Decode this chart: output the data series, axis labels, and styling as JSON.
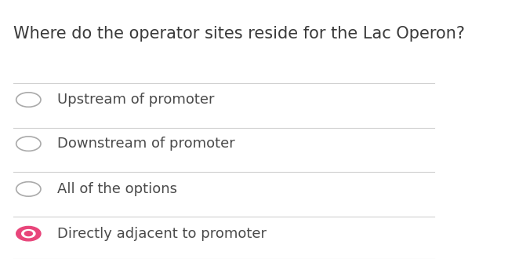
{
  "title": "Where do the operator sites reside for the Lac Operon?",
  "options": [
    "Upstream of promoter",
    "Downstream of promoter",
    "All of the options",
    "Directly adjacent to promoter"
  ],
  "selected_index": 3,
  "bg_color": "#ffffff",
  "title_color": "#3a3a3a",
  "option_text_color": "#4a4a4a",
  "divider_color": "#d0d0d0",
  "unselected_circle_color": "#aaaaaa",
  "selected_fill_color": "#e8457a",
  "selected_border_color": "#e8457a",
  "title_fontsize": 15,
  "option_fontsize": 13,
  "fig_width": 6.48,
  "fig_height": 3.3,
  "dpi": 100
}
